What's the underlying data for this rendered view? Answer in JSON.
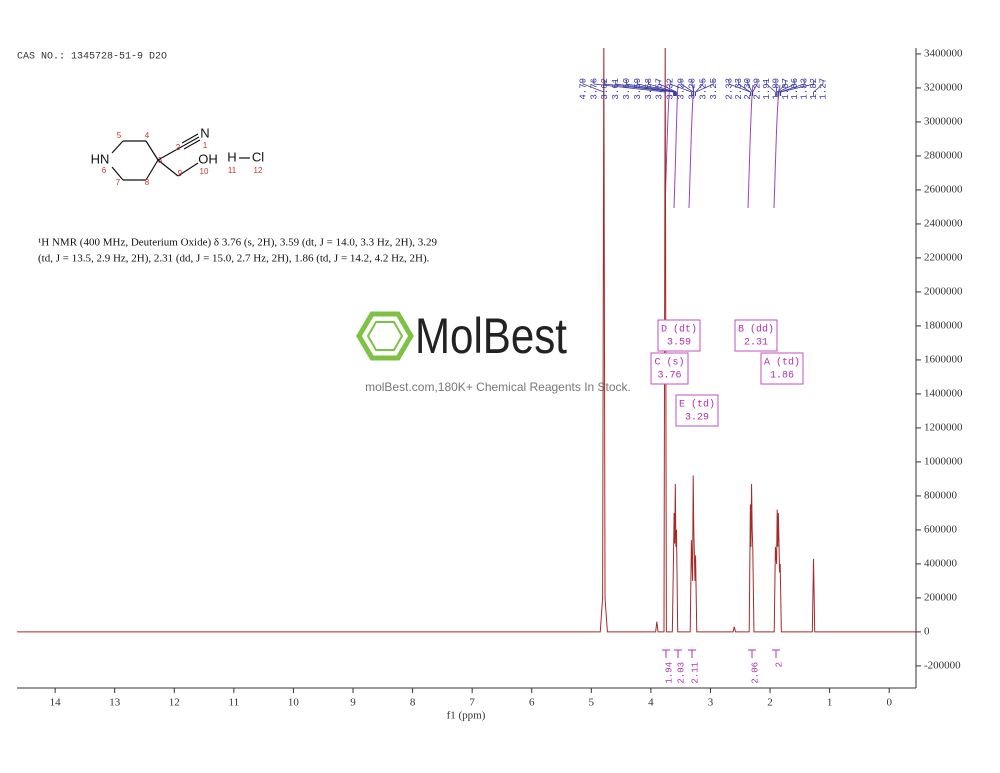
{
  "header": {
    "cas": "CAS NO.: 1345728-51-9 D2O"
  },
  "description": [
    "¹H NMR (400 MHz, Deuterium Oxide) δ 3.76 (s, 2H), 3.59 (dt, J = 14.0, 3.3 Hz, 2H), 3.29",
    "(td, J = 13.5, 2.9 Hz, 2H), 2.31 (dd, J = 15.0, 2.7 Hz, 2H), 1.86 (td, J = 14.2, 4.2 Hz, 2H)."
  ],
  "molecule": {
    "atoms": [
      "N",
      "1",
      "2",
      "3",
      "4",
      "5",
      "HN",
      "6",
      "7",
      "8",
      "9",
      "OH",
      "10",
      "H",
      "Cl",
      "11",
      "12"
    ]
  },
  "watermark": {
    "brand": "MolBest",
    "tagline": "molBest.com,180K+ Chemical Reagents In Stock."
  },
  "chart_data": {
    "type": "line",
    "xlabel": "f1 (ppm)",
    "color": "#a52a2a",
    "x": [
      14.64,
      4.85,
      4.81,
      4.79,
      4.77,
      4.73,
      3.92,
      3.9,
      3.88,
      3.78,
      3.76,
      3.74,
      3.64,
      3.62,
      3.61,
      3.6,
      3.59,
      3.58,
      3.57,
      3.55,
      3.34,
      3.32,
      3.3,
      3.29,
      3.28,
      3.26,
      3.25,
      3.23,
      2.62,
      2.6,
      2.58,
      2.35,
      2.33,
      2.32,
      2.31,
      2.3,
      2.29,
      2.27,
      1.93,
      1.91,
      1.89,
      1.88,
      1.87,
      1.86,
      1.84,
      1.83,
      1.81,
      1.29,
      1.27,
      1.25,
      -0.45
    ],
    "values": [
      0,
      0,
      200000,
      3500000,
      200000,
      0,
      0,
      60000,
      0,
      0,
      3500000,
      0,
      0,
      450000,
      700000,
      520000,
      870000,
      500000,
      600000,
      0,
      0,
      540000,
      300000,
      920000,
      600000,
      300000,
      450000,
      0,
      0,
      30000,
      0,
      0,
      750000,
      500000,
      870000,
      600000,
      500000,
      0,
      0,
      500000,
      400000,
      720000,
      500000,
      700000,
      350000,
      400000,
      0,
      0,
      430000,
      0,
      0
    ],
    "xlim": [
      14.64,
      -0.45
    ],
    "ylim": [
      -330000,
      3435000
    ],
    "xticks": [
      14,
      13,
      12,
      11,
      10,
      9,
      8,
      7,
      6,
      5,
      4,
      3,
      2,
      1,
      0
    ],
    "yticks": [
      -200000,
      0,
      200000,
      400000,
      600000,
      800000,
      1000000,
      1200000,
      1400000,
      1600000,
      1800000,
      2000000,
      2200000,
      2400000,
      2600000,
      2800000,
      3000000,
      3200000,
      3400000
    ],
    "peak_labels": [
      "4.79",
      "3.76",
      "3.62",
      "3.61",
      "3.60",
      "3.59",
      "3.58",
      "3.57",
      "3.32",
      "3.29",
      "3.28",
      "3.25",
      "3.25",
      "2.33",
      "2.33",
      "2.30",
      "2.29",
      "1.91",
      "1.89",
      "1.87",
      "1.86",
      "1.83",
      "1.82",
      "1.27"
    ],
    "integrals": [
      1.94,
      2.03,
      2.11,
      2.06,
      2.0
    ],
    "multiplets": [
      {
        "label": "D (dt)",
        "shift": 3.59
      },
      {
        "label": "B (dd)",
        "shift": 2.31
      },
      {
        "label": "C (s)",
        "shift": 3.76
      },
      {
        "label": "A (td)",
        "shift": 1.86
      },
      {
        "label": "E (td)",
        "shift": 3.29
      }
    ]
  }
}
